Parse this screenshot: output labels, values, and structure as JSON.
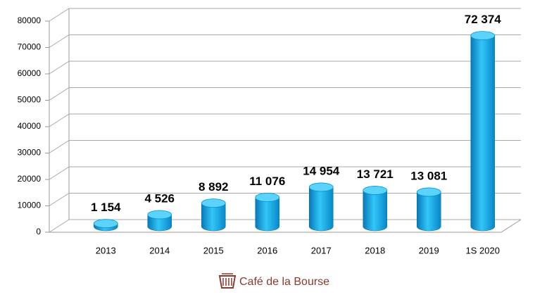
{
  "chart_data": {
    "type": "bar",
    "categories": [
      "2013",
      "2014",
      "2015",
      "2016",
      "2017",
      "2018",
      "2019",
      "1S 2020"
    ],
    "values": [
      1154,
      4526,
      8892,
      11076,
      14954,
      13721,
      13081,
      72374
    ],
    "value_labels": [
      "1 154",
      "4 526",
      "8 892",
      "11 076",
      "14 954",
      "13 721",
      "13 081",
      "72 374"
    ],
    "color": "#0aa6e4",
    "ylim": [
      0,
      80000
    ],
    "yticks": [
      0,
      10000,
      20000,
      30000,
      40000,
      50000,
      60000,
      70000,
      80000
    ],
    "grid": true
  },
  "footer": "Café de la Bourse"
}
